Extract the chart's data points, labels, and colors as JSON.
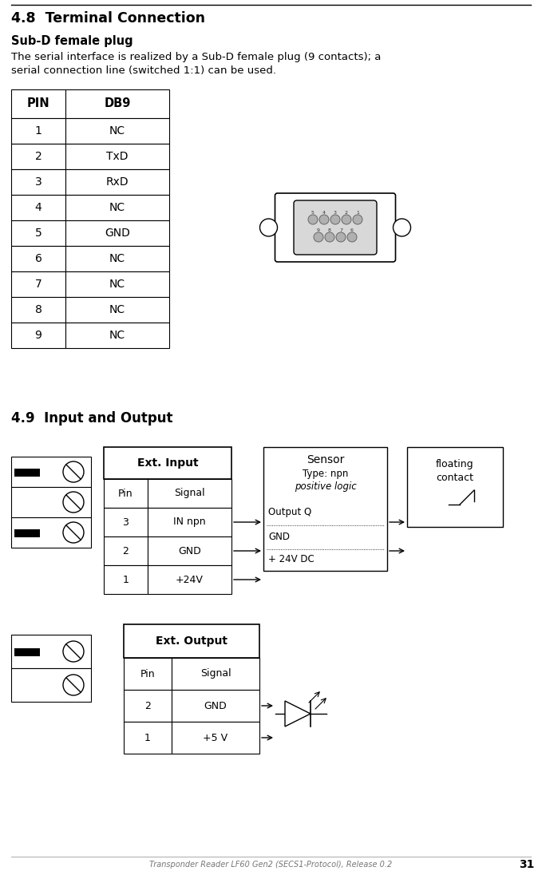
{
  "title_48": "4.8  Terminal Connection",
  "subtitle_48": "Sub-D female plug",
  "body_text_1": "The serial interface is realized by a Sub-D female plug (9 contacts); a",
  "body_text_2": "serial connection line (switched 1:1) can be used.",
  "table_headers": [
    "PIN",
    "DB9"
  ],
  "table_rows": [
    [
      "1",
      "NC"
    ],
    [
      "2",
      "TxD"
    ],
    [
      "3",
      "RxD"
    ],
    [
      "4",
      "NC"
    ],
    [
      "5",
      "GND"
    ],
    [
      "6",
      "NC"
    ],
    [
      "7",
      "NC"
    ],
    [
      "8",
      "NC"
    ],
    [
      "9",
      "NC"
    ]
  ],
  "title_49": "4.9  Input and Output",
  "ext_input_header": "Ext. Input",
  "ext_input_cols": [
    "Pin",
    "Signal"
  ],
  "ext_input_rows": [
    [
      "3",
      "IN npn"
    ],
    [
      "2",
      "GND"
    ],
    [
      "1",
      "+24V"
    ]
  ],
  "sensor_line1": "Sensor",
  "sensor_line2": "Type: npn",
  "sensor_line3": "positive logic",
  "sensor_row1": "Output Q",
  "sensor_row2": "GND",
  "sensor_row3": "+ 24V DC",
  "floating_text1": "floating",
  "floating_text2": "contact",
  "ext_output_header": "Ext. Output",
  "ext_output_cols": [
    "Pin",
    "Signal"
  ],
  "ext_output_rows": [
    [
      "2",
      "GND"
    ],
    [
      "1",
      "+5 V"
    ]
  ],
  "footer_text": "Transponder Reader LF60 Gen2 (SECS1-Protocol), Release 0.2",
  "page_number": "31",
  "bg_color": "#ffffff",
  "text_color": "#000000"
}
